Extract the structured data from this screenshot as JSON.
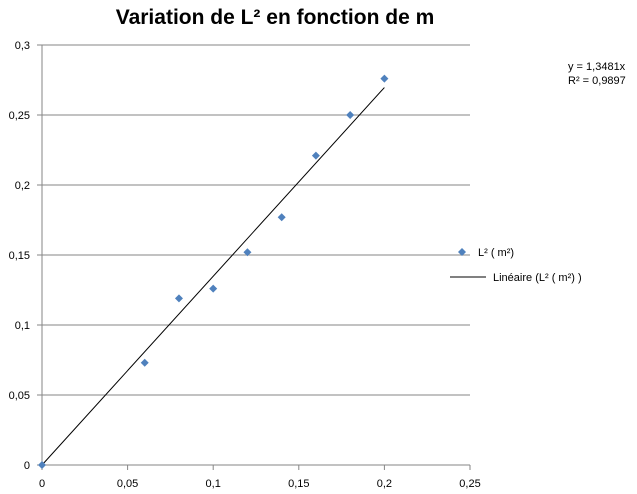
{
  "chart_data": {
    "type": "scatter",
    "title": "Variation de L² en fonction de m",
    "xlabel": "",
    "ylabel": "",
    "xlim": [
      0,
      0.25
    ],
    "ylim": [
      0,
      0.3
    ],
    "x_ticks": [
      "0",
      "0,05",
      "0,1",
      "0,15",
      "0,2",
      "0,25"
    ],
    "y_ticks": [
      "0",
      "0,05",
      "0,1",
      "0,15",
      "0,2",
      "0,25",
      "0,3"
    ],
    "grid": "horizontal",
    "legend_position": "right",
    "series": [
      {
        "name": "L² ( m²)",
        "marker": "diamond",
        "color": "#4f81bd",
        "points": [
          {
            "x": 0,
            "y": 0
          },
          {
            "x": 0.06,
            "y": 0.073
          },
          {
            "x": 0.08,
            "y": 0.119
          },
          {
            "x": 0.1,
            "y": 0.126
          },
          {
            "x": 0.12,
            "y": 0.152
          },
          {
            "x": 0.14,
            "y": 0.177
          },
          {
            "x": 0.16,
            "y": 0.221
          },
          {
            "x": 0.18,
            "y": 0.25
          },
          {
            "x": 0.2,
            "y": 0.276
          }
        ]
      }
    ],
    "trendline": {
      "name": "Linéaire (L² ( m²) )",
      "type": "linear",
      "slope": 1.3481,
      "x_range": [
        0,
        0.2
      ],
      "color": "#000000",
      "equation_label": "y = 1,3481x",
      "r2_label": "R² = 0,9897"
    }
  }
}
